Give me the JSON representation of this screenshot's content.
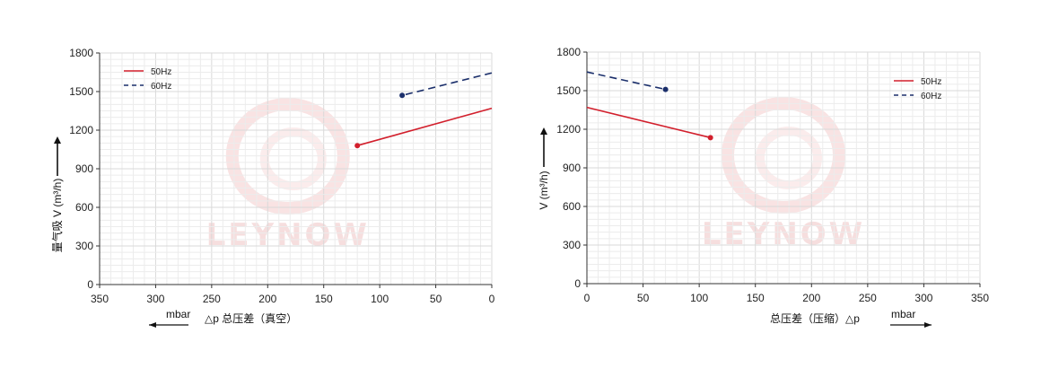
{
  "watermark": "LEYNOW",
  "chart_data": [
    {
      "type": "line",
      "xlabel": "△p  总压差（真空）",
      "ylabel": "量气吸 V (m³/h)",
      "unit": "mbar",
      "x_reversed": true,
      "xlim": [
        0,
        350
      ],
      "ylim": [
        0,
        1800
      ],
      "xticks": [
        350,
        300,
        250,
        200,
        150,
        100,
        50,
        0
      ],
      "yticks": [
        0,
        300,
        600,
        900,
        1200,
        1500,
        1800
      ],
      "grid": true,
      "legend_position": "top-left",
      "series": [
        {
          "name": "50Hz",
          "color": "#d21f2c",
          "dash": "solid",
          "x": [
            0,
            120
          ],
          "y": [
            1370,
            1080
          ]
        },
        {
          "name": "60Hz",
          "color": "#1b2f6b",
          "dash": "dashed",
          "x": [
            0,
            80
          ],
          "y": [
            1645,
            1470
          ]
        }
      ]
    },
    {
      "type": "line",
      "xlabel": "总压差（压缩）△p",
      "ylabel": "V (m³/h)",
      "unit": "mbar",
      "x_reversed": false,
      "xlim": [
        0,
        350
      ],
      "ylim": [
        0,
        1800
      ],
      "xticks": [
        0,
        50,
        100,
        150,
        200,
        250,
        300,
        350
      ],
      "yticks": [
        0,
        300,
        600,
        900,
        1200,
        1500,
        1800
      ],
      "grid": true,
      "legend_position": "top-right",
      "series": [
        {
          "name": "50Hz",
          "color": "#d21f2c",
          "dash": "solid",
          "x": [
            0,
            110
          ],
          "y": [
            1370,
            1135
          ]
        },
        {
          "name": "60Hz",
          "color": "#1b2f6b",
          "dash": "dashed",
          "x": [
            0,
            70
          ],
          "y": [
            1645,
            1510
          ]
        }
      ]
    }
  ]
}
